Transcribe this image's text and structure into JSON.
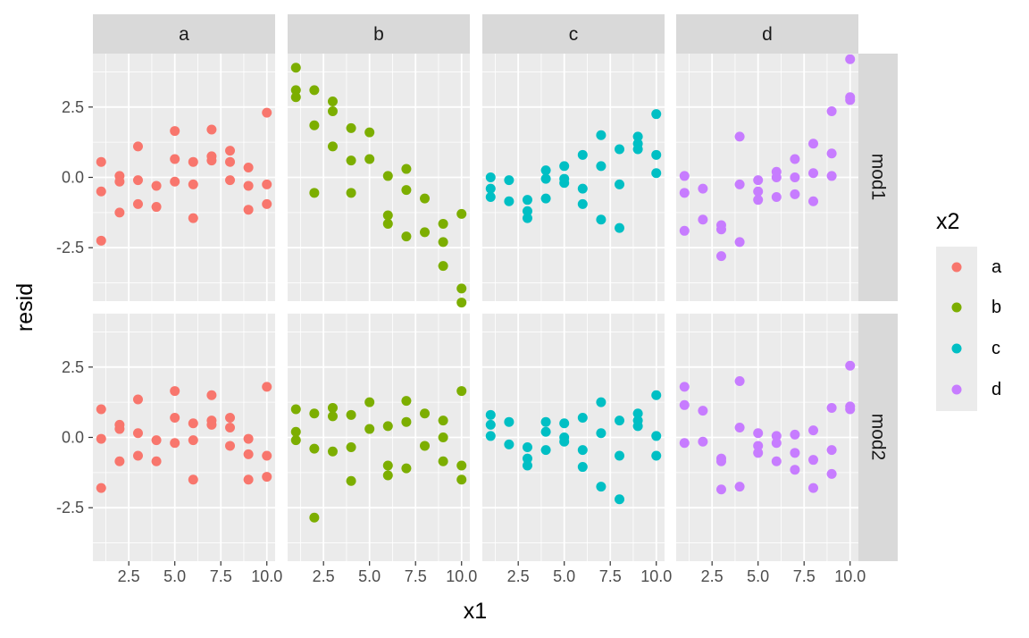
{
  "chart_data": {
    "type": "scatter",
    "facet_columns": [
      "a",
      "b",
      "c",
      "d"
    ],
    "facet_rows": [
      "mod1",
      "mod2"
    ],
    "xlabel": "x1",
    "ylabel": "resid",
    "xlim": [
      0.55,
      10.45
    ],
    "ylim": [
      -4.4,
      4.4
    ],
    "x_ticks": [
      2.5,
      5.0,
      7.5,
      10.0
    ],
    "x_tick_labels": [
      "2.5",
      "5.0",
      "7.5",
      "10.0"
    ],
    "y_ticks": [
      -2.5,
      0.0,
      2.5
    ],
    "y_tick_labels": [
      "-2.5",
      "0.0",
      "2.5"
    ],
    "grid": true,
    "legend": {
      "title": "x2",
      "placement": "right",
      "entries": [
        "a",
        "b",
        "c",
        "d"
      ]
    },
    "colors": {
      "a": "#F8766D",
      "b": "#7CAE00",
      "c": "#00BFC4",
      "d": "#C77CFF"
    },
    "panels": [
      {
        "col": "a",
        "row": "mod1",
        "points": [
          [
            1,
            0.55
          ],
          [
            1,
            -0.5
          ],
          [
            1,
            -2.25
          ],
          [
            2,
            0.05
          ],
          [
            2,
            -0.15
          ],
          [
            2,
            -1.25
          ],
          [
            3,
            1.1
          ],
          [
            3,
            -0.1
          ],
          [
            3,
            -0.95
          ],
          [
            4,
            -0.3
          ],
          [
            4,
            -1.05
          ],
          [
            5,
            1.65
          ],
          [
            5,
            0.65
          ],
          [
            5,
            -0.15
          ],
          [
            6,
            0.55
          ],
          [
            6,
            -0.25
          ],
          [
            6,
            -1.45
          ],
          [
            7,
            1.7
          ],
          [
            7,
            0.75
          ],
          [
            7,
            0.6
          ],
          [
            8,
            0.95
          ],
          [
            8,
            0.55
          ],
          [
            8,
            -0.1
          ],
          [
            9,
            0.35
          ],
          [
            9,
            -0.3
          ],
          [
            9,
            -1.15
          ],
          [
            10,
            2.3
          ],
          [
            10,
            -0.25
          ],
          [
            10,
            -0.95
          ]
        ]
      },
      {
        "col": "b",
        "row": "mod1",
        "points": [
          [
            1,
            3.9
          ],
          [
            1,
            3.1
          ],
          [
            1,
            2.85
          ],
          [
            2,
            3.1
          ],
          [
            2,
            1.85
          ],
          [
            2,
            -0.55
          ],
          [
            3,
            2.7
          ],
          [
            3,
            2.35
          ],
          [
            3,
            1.1
          ],
          [
            4,
            1.75
          ],
          [
            4,
            0.6
          ],
          [
            4,
            -0.55
          ],
          [
            5,
            1.6
          ],
          [
            5,
            0.65
          ],
          [
            6,
            0.05
          ],
          [
            6,
            -1.35
          ],
          [
            6,
            -1.65
          ],
          [
            7,
            0.3
          ],
          [
            7,
            -0.45
          ],
          [
            7,
            -2.1
          ],
          [
            8,
            -0.75
          ],
          [
            8,
            -1.95
          ],
          [
            9,
            -1.65
          ],
          [
            9,
            -2.3
          ],
          [
            9,
            -3.15
          ],
          [
            10,
            -1.3
          ],
          [
            10,
            -3.95
          ],
          [
            10,
            -4.45
          ]
        ]
      },
      {
        "col": "c",
        "row": "mod1",
        "points": [
          [
            1,
            0.0
          ],
          [
            1,
            -0.4
          ],
          [
            1,
            -0.7
          ],
          [
            2,
            -0.1
          ],
          [
            2,
            -0.85
          ],
          [
            3,
            -0.8
          ],
          [
            3,
            -1.2
          ],
          [
            3,
            -1.45
          ],
          [
            4,
            0.25
          ],
          [
            4,
            -0.05
          ],
          [
            4,
            -0.75
          ],
          [
            5,
            0.4
          ],
          [
            5,
            -0.05
          ],
          [
            5,
            -0.2
          ],
          [
            6,
            0.8
          ],
          [
            6,
            -0.4
          ],
          [
            6,
            -0.95
          ],
          [
            7,
            1.5
          ],
          [
            7,
            0.4
          ],
          [
            7,
            -1.5
          ],
          [
            8,
            1.0
          ],
          [
            8,
            -0.25
          ],
          [
            8,
            -1.8
          ],
          [
            9,
            1.45
          ],
          [
            9,
            1.2
          ],
          [
            9,
            1.0
          ],
          [
            10,
            2.25
          ],
          [
            10,
            0.8
          ],
          [
            10,
            0.15
          ]
        ]
      },
      {
        "col": "d",
        "row": "mod1",
        "points": [
          [
            1,
            0.05
          ],
          [
            1,
            -0.55
          ],
          [
            1,
            -1.9
          ],
          [
            2,
            -0.4
          ],
          [
            2,
            -1.5
          ],
          [
            3,
            -1.7
          ],
          [
            3,
            -1.85
          ],
          [
            3,
            -2.8
          ],
          [
            4,
            1.45
          ],
          [
            4,
            -0.25
          ],
          [
            4,
            -2.3
          ],
          [
            5,
            -0.1
          ],
          [
            5,
            -0.5
          ],
          [
            5,
            -0.8
          ],
          [
            6,
            0.2
          ],
          [
            6,
            0.0
          ],
          [
            6,
            -0.7
          ],
          [
            7,
            0.65
          ],
          [
            7,
            0.0
          ],
          [
            7,
            -0.6
          ],
          [
            8,
            1.2
          ],
          [
            8,
            0.15
          ],
          [
            8,
            -0.85
          ],
          [
            9,
            2.35
          ],
          [
            9,
            0.85
          ],
          [
            9,
            0.05
          ],
          [
            10,
            4.2
          ],
          [
            10,
            2.85
          ],
          [
            10,
            2.75
          ]
        ]
      },
      {
        "col": "a",
        "row": "mod2",
        "points": [
          [
            1,
            1.0
          ],
          [
            1,
            -0.05
          ],
          [
            1,
            -1.8
          ],
          [
            2,
            0.45
          ],
          [
            2,
            0.3
          ],
          [
            2,
            -0.85
          ],
          [
            3,
            1.35
          ],
          [
            3,
            0.15
          ],
          [
            3,
            -0.65
          ],
          [
            4,
            -0.1
          ],
          [
            4,
            -0.85
          ],
          [
            5,
            1.65
          ],
          [
            5,
            0.7
          ],
          [
            5,
            -0.2
          ],
          [
            6,
            0.5
          ],
          [
            6,
            -0.1
          ],
          [
            6,
            -1.5
          ],
          [
            7,
            1.5
          ],
          [
            7,
            0.6
          ],
          [
            7,
            0.45
          ],
          [
            8,
            0.7
          ],
          [
            8,
            0.35
          ],
          [
            8,
            -0.3
          ],
          [
            9,
            -0.05
          ],
          [
            9,
            -0.6
          ],
          [
            9,
            -1.5
          ],
          [
            10,
            1.8
          ],
          [
            10,
            -0.65
          ],
          [
            10,
            -1.4
          ]
        ]
      },
      {
        "col": "b",
        "row": "mod2",
        "points": [
          [
            1,
            1.0
          ],
          [
            1,
            0.2
          ],
          [
            1,
            -0.1
          ],
          [
            2,
            0.85
          ],
          [
            2,
            -0.4
          ],
          [
            2,
            -2.85
          ],
          [
            3,
            1.05
          ],
          [
            3,
            0.75
          ],
          [
            3,
            -0.5
          ],
          [
            4,
            0.8
          ],
          [
            4,
            -0.35
          ],
          [
            4,
            -1.55
          ],
          [
            5,
            1.25
          ],
          [
            5,
            0.3
          ],
          [
            6,
            0.4
          ],
          [
            6,
            -1.0
          ],
          [
            6,
            -1.35
          ],
          [
            7,
            1.3
          ],
          [
            7,
            0.55
          ],
          [
            7,
            -1.1
          ],
          [
            8,
            0.85
          ],
          [
            8,
            -0.3
          ],
          [
            9,
            0.6
          ],
          [
            9,
            0.0
          ],
          [
            9,
            -0.85
          ],
          [
            10,
            1.65
          ],
          [
            10,
            -1.0
          ],
          [
            10,
            -1.5
          ]
        ]
      },
      {
        "col": "c",
        "row": "mod2",
        "points": [
          [
            1,
            0.8
          ],
          [
            1,
            0.45
          ],
          [
            1,
            0.05
          ],
          [
            2,
            0.55
          ],
          [
            2,
            -0.25
          ],
          [
            3,
            -0.35
          ],
          [
            3,
            -0.75
          ],
          [
            3,
            -1.0
          ],
          [
            4,
            0.55
          ],
          [
            4,
            0.2
          ],
          [
            4,
            -0.45
          ],
          [
            5,
            0.5
          ],
          [
            5,
            0.0
          ],
          [
            5,
            -0.15
          ],
          [
            6,
            0.7
          ],
          [
            6,
            -0.45
          ],
          [
            6,
            -1.05
          ],
          [
            7,
            1.25
          ],
          [
            7,
            0.15
          ],
          [
            7,
            -1.75
          ],
          [
            8,
            0.6
          ],
          [
            8,
            -0.65
          ],
          [
            8,
            -2.2
          ],
          [
            9,
            0.85
          ],
          [
            9,
            0.6
          ],
          [
            9,
            0.4
          ],
          [
            10,
            1.5
          ],
          [
            10,
            0.05
          ],
          [
            10,
            -0.65
          ]
        ]
      },
      {
        "col": "d",
        "row": "mod2",
        "points": [
          [
            1,
            1.8
          ],
          [
            1,
            1.15
          ],
          [
            1,
            -0.2
          ],
          [
            2,
            0.95
          ],
          [
            2,
            -0.15
          ],
          [
            3,
            -0.75
          ],
          [
            3,
            -0.85
          ],
          [
            3,
            -1.85
          ],
          [
            4,
            2.0
          ],
          [
            4,
            0.35
          ],
          [
            4,
            -1.75
          ],
          [
            5,
            0.15
          ],
          [
            5,
            -0.3
          ],
          [
            5,
            -0.55
          ],
          [
            6,
            0.05
          ],
          [
            6,
            -0.2
          ],
          [
            6,
            -0.85
          ],
          [
            7,
            0.1
          ],
          [
            7,
            -0.55
          ],
          [
            7,
            -1.15
          ],
          [
            8,
            0.25
          ],
          [
            8,
            -0.8
          ],
          [
            8,
            -1.8
          ],
          [
            9,
            1.05
          ],
          [
            9,
            -0.45
          ],
          [
            9,
            -1.3
          ],
          [
            10,
            2.55
          ],
          [
            10,
            1.1
          ],
          [
            10,
            1.0
          ]
        ]
      }
    ]
  }
}
